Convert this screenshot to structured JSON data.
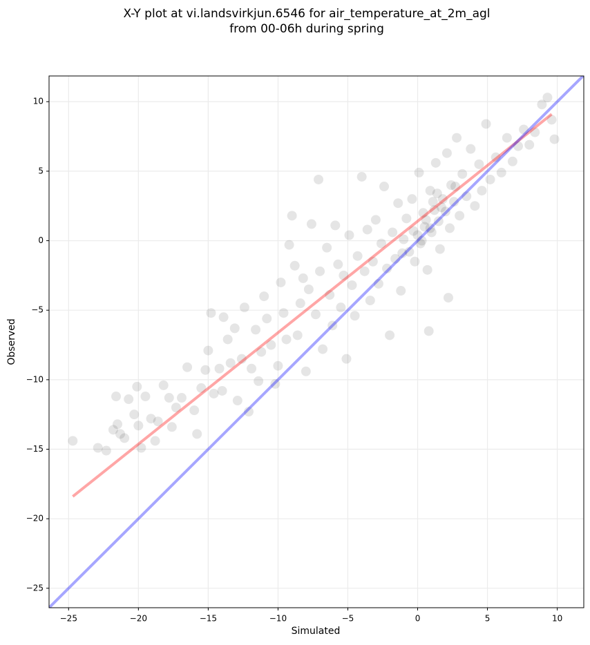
{
  "chart_data": {
    "type": "scatter",
    "title": "X-Y plot at vi.landsvirkjun.6546 for air_temperature_at_2m_agl",
    "subtitle": "from 00-06h during spring",
    "x_label": "Simulated",
    "y_label": "Observed",
    "xlim": [
      -26.4,
      11.9
    ],
    "ylim": [
      -26.4,
      11.85
    ],
    "xticks": [
      {
        "value": -25,
        "label": "−25"
      },
      {
        "value": -20,
        "label": "−20"
      },
      {
        "value": -15,
        "label": "−15"
      },
      {
        "value": -10,
        "label": "−10"
      },
      {
        "value": -5,
        "label": "−5"
      },
      0,
      5,
      10
    ],
    "yticks": [
      {
        "value": -25,
        "label": "−25"
      },
      {
        "value": -20,
        "label": "−20"
      },
      {
        "value": -15,
        "label": "−15"
      },
      {
        "value": -10,
        "label": "−10"
      },
      {
        "value": -5,
        "label": "−5"
      },
      0,
      5,
      10
    ],
    "grid": true,
    "series": [
      {
        "type": "scatter",
        "color": "#000000",
        "opacity": 0.1,
        "x": [
          -24.7,
          -22.9,
          -22.3,
          -21.8,
          -21.5,
          -21.3,
          -21.0,
          -21.6,
          -20.7,
          -20.3,
          -20.0,
          -20.1,
          -19.8,
          -19.5,
          -19.1,
          -18.8,
          -18.6,
          -18.2,
          -17.8,
          -17.6,
          -17.3,
          -16.9,
          -16.5,
          -16.0,
          -15.8,
          -15.5,
          -15.2,
          -15.0,
          -14.8,
          -14.6,
          -14.2,
          -14.0,
          -13.9,
          -13.6,
          -13.4,
          -13.1,
          -12.9,
          -12.6,
          -12.4,
          -12.1,
          -11.9,
          -11.6,
          -11.4,
          -11.2,
          -11.0,
          -10.8,
          -10.5,
          -10.2,
          -10.0,
          -9.8,
          -9.6,
          -9.4,
          -9.2,
          -9.0,
          -8.8,
          -8.6,
          -8.4,
          -8.2,
          -8.0,
          -7.8,
          -7.6,
          -7.3,
          -7.1,
          -7.0,
          -6.8,
          -6.5,
          -6.3,
          -6.1,
          -5.9,
          -5.7,
          -5.5,
          -5.3,
          -5.1,
          -4.9,
          -4.7,
          -4.5,
          -4.3,
          -4.0,
          -3.8,
          -3.6,
          -3.4,
          -3.2,
          -3.0,
          -2.8,
          -2.6,
          -2.4,
          -2.2,
          -2.0,
          -1.8,
          -1.6,
          -1.4,
          -1.2,
          -1.0,
          -0.8,
          -0.6,
          -0.4,
          -0.2,
          0.0,
          0.1,
          0.2,
          0.4,
          0.5,
          0.7,
          0.8,
          0.9,
          1.0,
          1.2,
          1.3,
          1.5,
          1.6,
          1.8,
          2.0,
          2.1,
          2.3,
          2.4,
          2.2,
          2.6,
          2.8,
          3.0,
          3.2,
          3.5,
          3.8,
          4.1,
          4.4,
          4.6,
          4.9,
          5.2,
          5.6,
          6.0,
          6.4,
          6.8,
          7.2,
          7.6,
          8.0,
          8.4,
          8.9,
          9.3,
          9.6,
          9.8,
          0.3,
          0.6,
          1.1,
          1.4,
          0.9,
          1.7,
          -0.3,
          2.7,
          -1.1
        ],
        "values": [
          -14.4,
          -14.9,
          -15.1,
          -13.6,
          -13.2,
          -13.9,
          -14.2,
          -11.2,
          -11.4,
          -12.5,
          -13.3,
          -10.5,
          -14.9,
          -11.2,
          -12.8,
          -14.4,
          -13.0,
          -10.4,
          -11.3,
          -13.4,
          -12.0,
          -11.3,
          -9.1,
          -12.2,
          -13.9,
          -10.6,
          -9.3,
          -7.9,
          -5.2,
          -11.0,
          -9.2,
          -10.8,
          -5.5,
          -7.1,
          -8.8,
          -6.3,
          -11.5,
          -8.5,
          -4.8,
          -12.3,
          -9.2,
          -6.4,
          -10.1,
          -8.0,
          -4.0,
          -5.6,
          -7.5,
          -10.3,
          -9.0,
          -3.0,
          -5.2,
          -7.1,
          -0.3,
          1.8,
          -1.8,
          -6.8,
          -4.5,
          -2.7,
          -9.4,
          -3.5,
          1.2,
          -5.3,
          4.4,
          -2.2,
          -7.8,
          -0.5,
          -3.9,
          -6.1,
          1.1,
          -1.7,
          -4.8,
          -2.5,
          -8.5,
          0.4,
          -3.2,
          -5.4,
          -1.1,
          4.6,
          -2.2,
          0.8,
          -4.3,
          -1.5,
          1.5,
          -3.1,
          -0.2,
          3.9,
          -2.0,
          -6.8,
          0.6,
          -1.3,
          2.7,
          -3.6,
          0.1,
          1.6,
          -0.8,
          3.0,
          -1.5,
          0.4,
          4.9,
          -0.2,
          2.0,
          1.0,
          -2.1,
          -6.5,
          3.6,
          0.6,
          2.2,
          5.6,
          1.4,
          -0.6,
          3.0,
          2.1,
          6.3,
          0.9,
          4.0,
          -4.1,
          2.8,
          7.4,
          1.8,
          4.8,
          3.2,
          6.6,
          2.5,
          5.5,
          3.6,
          8.4,
          4.4,
          6.0,
          4.9,
          7.4,
          5.7,
          6.8,
          8.0,
          6.9,
          7.8,
          9.8,
          10.3,
          8.7,
          7.3,
          0.0,
          1.5,
          2.8,
          3.4,
          0.9,
          2.4,
          0.7,
          3.9,
          -0.9
        ]
      },
      {
        "type": "line",
        "color": "#ff0000",
        "opacity": 0.35,
        "x": [
          -24.7,
          9.6
        ],
        "values": [
          -18.4,
          9.1
        ]
      },
      {
        "type": "line",
        "color": "#0000ff",
        "opacity": 0.35,
        "x": [
          -26.4,
          11.9
        ],
        "values": [
          -26.4,
          11.9
        ]
      }
    ]
  }
}
